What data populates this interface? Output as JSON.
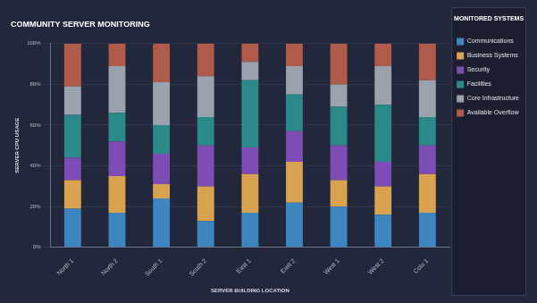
{
  "chart_data": {
    "type": "bar",
    "title": "COMMUNITY SERVER MONITORING",
    "x_label": "SERVER BUILDING LOCATION",
    "y_label": "SERVER CPU USAGE",
    "legend_title": "MONITORED SYSTEMS",
    "categories": [
      "North 1",
      "North 2",
      "South 1",
      "South 2",
      "East 1",
      "East 2",
      "West 1",
      "West 2",
      "Colu 1"
    ],
    "series": [
      {
        "name": "Communications",
        "color": "#3d86c0",
        "values": [
          19,
          17,
          24,
          13,
          17,
          22,
          20,
          16,
          17
        ]
      },
      {
        "name": "Business Systems",
        "color": "#d9a24e",
        "values": [
          14,
          18,
          7,
          17,
          19,
          20,
          13,
          14,
          19
        ]
      },
      {
        "name": "Security",
        "color": "#7e4cb5",
        "values": [
          11,
          17,
          15,
          20,
          13,
          15,
          17,
          12,
          14
        ]
      },
      {
        "name": "Facilities",
        "color": "#2a8a8a",
        "values": [
          21,
          14,
          14,
          14,
          33,
          18,
          19,
          28,
          14
        ]
      },
      {
        "name": "Core Infrastructure",
        "color": "#9aa3ad",
        "values": [
          14,
          23,
          21,
          20,
          9,
          14,
          11,
          19,
          18
        ]
      },
      {
        "name": "Available Overflow",
        "color": "#b05a4a",
        "values": [
          21,
          11,
          19,
          16,
          9,
          11,
          20,
          11,
          18
        ]
      }
    ],
    "stacked": true,
    "ylim": [
      0,
      100
    ],
    "yticks": [
      {
        "value": 0,
        "label": "0%"
      },
      {
        "value": 20,
        "label": "20%"
      },
      {
        "value": 40,
        "label": "40%"
      },
      {
        "value": 60,
        "label": "60%"
      },
      {
        "value": 80,
        "label": "80%"
      },
      {
        "value": 100,
        "label": "100%"
      }
    ],
    "grid": true,
    "legend": "right"
  }
}
